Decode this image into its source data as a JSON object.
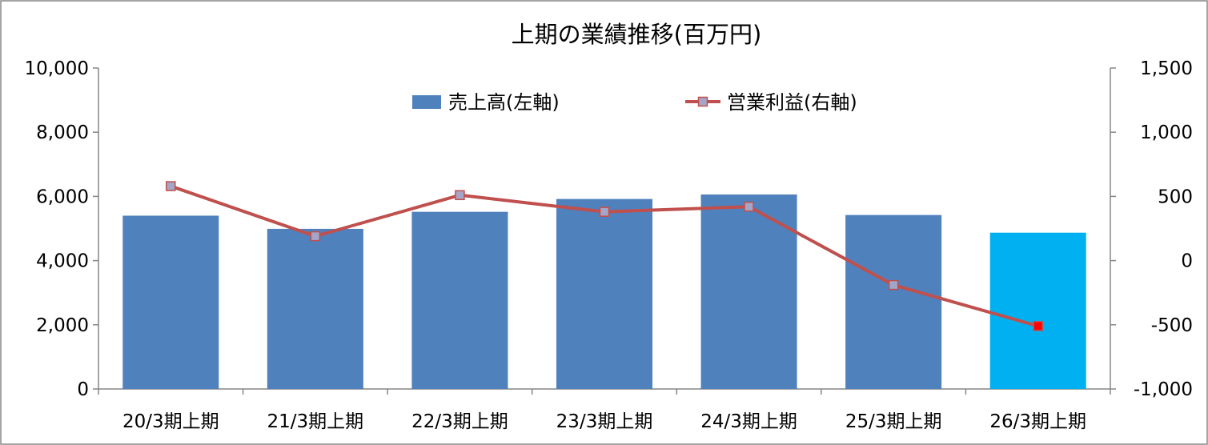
{
  "chart_data": {
    "type": "bar",
    "title": "上期の業績推移(百万円)",
    "categories": [
      "20/3期上期",
      "21/3期上期",
      "22/3期上期",
      "23/3期上期",
      "24/3期上期",
      "25/3期上期",
      "26/3期上期"
    ],
    "series": [
      {
        "name": "売上高(左軸)",
        "type": "bar",
        "axis": "left",
        "values": [
          5400,
          4990,
          5520,
          5920,
          6060,
          5420,
          4870
        ],
        "color": "#4f81bd",
        "highlight_last_color": "#00b0f0"
      },
      {
        "name": "営業利益(右軸)",
        "type": "line",
        "axis": "right",
        "values": [
          580,
          190,
          510,
          380,
          420,
          -190,
          -510
        ],
        "color": "#c0504d",
        "marker_color": "#a5a5c8",
        "highlight_last_marker": "#ff0000"
      }
    ],
    "y_left": {
      "range": [
        0,
        10000
      ],
      "ticks": [
        "0",
        "2,000",
        "4,000",
        "6,000",
        "8,000",
        "10,000"
      ]
    },
    "y_right": {
      "range": [
        -1000,
        1500
      ],
      "ticks": [
        "-1,000",
        "-500",
        "0",
        "500",
        "1,000",
        "1,500"
      ],
      "negative_color": "#ff0000"
    },
    "grid": false,
    "legend_position": "top-center"
  }
}
